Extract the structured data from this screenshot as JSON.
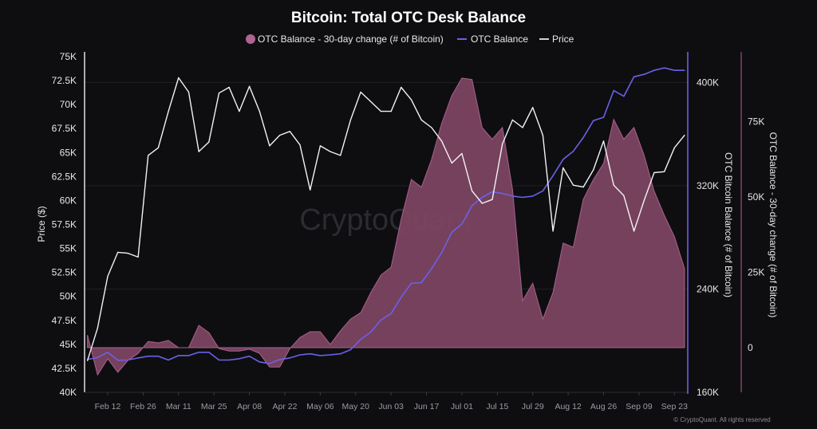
{
  "chart_data": {
    "type": "line",
    "title": "Bitcoin: Total OTC Desk Balance",
    "watermark": "CryptoQuant",
    "copyright": "© CryptoQuant. All rights reserved",
    "legend_position": "top-center",
    "grid": true,
    "legend": [
      {
        "label": "OTC Balance - 30-day change (# of Bitcoin)",
        "color": "#b0648f",
        "marker": "circle"
      },
      {
        "label": "OTC Balance",
        "color": "#6a62e6",
        "marker": "line"
      },
      {
        "label": "Price",
        "color": "#ffffff",
        "marker": "line"
      }
    ],
    "x_ticks": [
      "Feb 12",
      "Feb 26",
      "Mar 11",
      "Mar 25",
      "Apr 08",
      "Apr 22",
      "May 06",
      "May 20",
      "Jun 03",
      "Jun 17",
      "Jul 01",
      "Jul 15",
      "Jul 29",
      "Aug 12",
      "Aug 26",
      "Sep 09",
      "Sep 23"
    ],
    "x_tick_dates": [
      "2024-02-12",
      "2024-02-26",
      "2024-03-11",
      "2024-03-25",
      "2024-04-08",
      "2024-04-22",
      "2024-05-06",
      "2024-05-20",
      "2024-06-03",
      "2024-06-17",
      "2024-07-01",
      "2024-07-15",
      "2024-07-29",
      "2024-08-12",
      "2024-08-26",
      "2024-09-09",
      "2024-09-23"
    ],
    "axes": {
      "price": {
        "label": "Price ($)",
        "side": "left",
        "range": [
          40000,
          75000
        ],
        "ticks": [
          40000,
          42500,
          45000,
          47500,
          50000,
          52500,
          55000,
          57500,
          60000,
          62500,
          65000,
          67500,
          70000,
          72500,
          75000
        ],
        "tick_labels": [
          "40K",
          "42.5K",
          "45K",
          "47.5K",
          "50K",
          "52.5K",
          "55K",
          "57.5K",
          "60K",
          "62.5K",
          "65K",
          "67.5K",
          "70K",
          "72.5K",
          "75K"
        ],
        "color": "#ffffff"
      },
      "balance": {
        "label": "OTC Bitcoin Balance (# of Bitcoin)",
        "side": "right",
        "range": [
          160000,
          420000
        ],
        "ticks": [
          160000,
          240000,
          320000,
          400000
        ],
        "tick_labels": [
          "160K",
          "240K",
          "320K",
          "400K"
        ],
        "color": "#6a62e6"
      },
      "change": {
        "label": "OTC Balance - 30-day change (# of Bitcoin)",
        "side": "right-outer",
        "range": [
          -14800,
          96500
        ],
        "ticks": [
          0,
          25000,
          50000,
          75000
        ],
        "tick_labels": [
          "0",
          "25K",
          "50K",
          "75K"
        ],
        "color": "#8a4a6c"
      }
    },
    "x": [
      "2024-02-04",
      "2024-02-08",
      "2024-02-12",
      "2024-02-16",
      "2024-02-20",
      "2024-02-24",
      "2024-02-28",
      "2024-03-03",
      "2024-03-07",
      "2024-03-11",
      "2024-03-15",
      "2024-03-19",
      "2024-03-23",
      "2024-03-27",
      "2024-03-31",
      "2024-04-04",
      "2024-04-08",
      "2024-04-12",
      "2024-04-16",
      "2024-04-20",
      "2024-04-24",
      "2024-04-28",
      "2024-05-02",
      "2024-05-06",
      "2024-05-10",
      "2024-05-14",
      "2024-05-18",
      "2024-05-22",
      "2024-05-26",
      "2024-05-30",
      "2024-06-03",
      "2024-06-07",
      "2024-06-11",
      "2024-06-15",
      "2024-06-19",
      "2024-06-23",
      "2024-06-27",
      "2024-07-01",
      "2024-07-05",
      "2024-07-09",
      "2024-07-13",
      "2024-07-17",
      "2024-07-21",
      "2024-07-25",
      "2024-07-29",
      "2024-08-02",
      "2024-08-06",
      "2024-08-10",
      "2024-08-14",
      "2024-08-18",
      "2024-08-22",
      "2024-08-26",
      "2024-08-30",
      "2024-09-03",
      "2024-09-07",
      "2024-09-11",
      "2024-09-15",
      "2024-09-19",
      "2024-09-23",
      "2024-09-27"
    ],
    "series": [
      {
        "name": "OTC Balance - 30-day change (# of Bitcoin)",
        "axis": "change",
        "type": "area",
        "values": [
          4200,
          -9000,
          -3700,
          -8200,
          -4200,
          -1900,
          2100,
          1600,
          2400,
          0,
          0,
          7400,
          5000,
          -300,
          -1100,
          -1100,
          -500,
          -1900,
          -6400,
          -6400,
          -300,
          3400,
          5300,
          5300,
          1100,
          5600,
          9500,
          11600,
          18300,
          24100,
          26700,
          42600,
          55800,
          53200,
          62400,
          74400,
          83600,
          89400,
          88900,
          73000,
          69100,
          73000,
          52400,
          15600,
          21400,
          9500,
          18300,
          34700,
          33300,
          49200,
          55800,
          61100,
          75700,
          69100,
          73000,
          63800,
          51900,
          43900,
          36800,
          26200
        ]
      },
      {
        "name": "OTC Balance",
        "axis": "balance",
        "type": "line",
        "values": [
          185400,
          187000,
          191000,
          184800,
          185000,
          186600,
          188000,
          188000,
          185000,
          188500,
          188500,
          191000,
          191000,
          185000,
          185000,
          186000,
          188000,
          183500,
          182300,
          185400,
          186600,
          189000,
          189800,
          188500,
          189000,
          189800,
          193000,
          201000,
          206700,
          216000,
          221000,
          233700,
          244400,
          245000,
          255700,
          268200,
          284000,
          290300,
          304600,
          311000,
          315300,
          314000,
          312000,
          311000,
          312000,
          316000,
          327800,
          340400,
          346700,
          357300,
          370500,
          373000,
          393700,
          389300,
          404400,
          406300,
          409400,
          411300,
          409400,
          409400
        ]
      },
      {
        "name": "Price",
        "axis": "price",
        "type": "line",
        "values": [
          43300,
          46700,
          52100,
          54600,
          54500,
          54100,
          64700,
          65500,
          69300,
          72800,
          71300,
          65100,
          66100,
          71200,
          71800,
          69300,
          71900,
          69300,
          65700,
          66800,
          67200,
          65800,
          61100,
          65700,
          65100,
          64700,
          68400,
          71300,
          70300,
          69300,
          69300,
          71800,
          70500,
          68400,
          67600,
          66200,
          63900,
          64900,
          61000,
          59700,
          60100,
          65900,
          68400,
          67600,
          69700,
          66800,
          56800,
          63400,
          61600,
          61400,
          63200,
          66200,
          61600,
          60500,
          56800,
          60000,
          62900,
          63000,
          65500,
          66800
        ]
      }
    ]
  }
}
